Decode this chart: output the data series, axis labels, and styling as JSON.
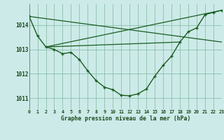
{
  "background_color": "#cceae8",
  "grid_color": "#8bbfaa",
  "line_color": "#1a5c20",
  "title": "Graphe pression niveau de la mer (hPa)",
  "xlim": [
    0,
    23
  ],
  "ylim": [
    1010.55,
    1014.85
  ],
  "yticks": [
    1011,
    1012,
    1013,
    1014
  ],
  "main_x": [
    0,
    1,
    2,
    3,
    4,
    5,
    6,
    7,
    8,
    9,
    10,
    11,
    12,
    13,
    14,
    15,
    16,
    17,
    18,
    19,
    20,
    21,
    22,
    23
  ],
  "main_y": [
    1014.35,
    1013.55,
    1013.1,
    1013.0,
    1012.82,
    1012.88,
    1012.58,
    1012.12,
    1011.72,
    1011.45,
    1011.35,
    1011.12,
    1011.1,
    1011.18,
    1011.38,
    1011.9,
    1012.35,
    1012.72,
    1013.3,
    1013.72,
    1013.88,
    1014.42,
    1014.52,
    1014.6
  ],
  "line1_x": [
    2,
    18
  ],
  "line1_y": [
    1013.1,
    1013.3
  ],
  "line2_x": [
    0,
    23
  ],
  "line2_y": [
    1014.35,
    1013.3
  ],
  "line3_x": [
    2,
    23
  ],
  "line3_y": [
    1013.1,
    1014.6
  ],
  "figsize": [
    3.2,
    2.0
  ],
  "dpi": 100
}
